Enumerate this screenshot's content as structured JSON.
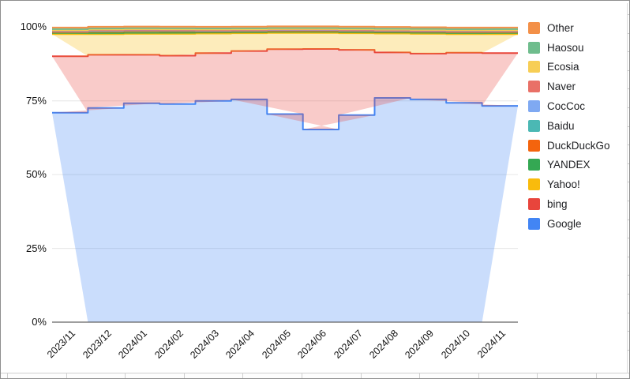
{
  "chart_data": {
    "type": "area",
    "stacking": "percent",
    "step": true,
    "title": "",
    "xlabel": "",
    "ylabel": "",
    "ylim": [
      0,
      100
    ],
    "grid": true,
    "legend_position": "right",
    "x": [
      "2023/11",
      "2023/12",
      "2024/01",
      "2024/02",
      "2024/03",
      "2024/04",
      "2024/05",
      "2024/06",
      "2024/07",
      "2024/08",
      "2024/09",
      "2024/10",
      "2024/11"
    ],
    "y_ticks": [
      "100%",
      "75%",
      "50%",
      "25%",
      "0%"
    ],
    "series": [
      {
        "name": "Google",
        "color": "#4285F4",
        "values": [
          71.0,
          72.6,
          74.2,
          73.9,
          75.0,
          75.5,
          70.5,
          65.3,
          70.2,
          76.0,
          75.5,
          74.3,
          73.3
        ]
      },
      {
        "name": "bing",
        "color": "#E8453C",
        "values": [
          19.1,
          18.0,
          16.4,
          16.4,
          16.2,
          16.4,
          22.0,
          27.3,
          22.1,
          15.4,
          15.5,
          17.0,
          17.9
        ]
      },
      {
        "name": "Yahoo!",
        "color": "#F9BB0C",
        "values": [
          7.5,
          7.0,
          7.1,
          7.4,
          6.6,
          6.0,
          5.5,
          5.4,
          5.6,
          6.4,
          6.7,
          6.3,
          6.4
        ]
      },
      {
        "name": "YANDEX",
        "color": "#34A853",
        "values": [
          0.4,
          0.4,
          0.4,
          0.4,
          0.4,
          0.4,
          0.4,
          0.4,
          0.4,
          0.4,
          0.4,
          0.4,
          0.4
        ]
      },
      {
        "name": "DuckDuckGo",
        "color": "#F4640D",
        "values": [
          0.3,
          0.55,
          0.55,
          0.5,
          0.35,
          0.3,
          0.3,
          0.3,
          0.3,
          0.3,
          0.3,
          0.3,
          0.3
        ]
      },
      {
        "name": "Baidu",
        "color": "#4BB8B4",
        "values": [
          0.25,
          0.25,
          0.25,
          0.25,
          0.25,
          0.25,
          0.25,
          0.25,
          0.25,
          0.25,
          0.25,
          0.25,
          0.25
        ]
      },
      {
        "name": "CocCoc",
        "color": "#7FA9F2",
        "values": [
          0.05,
          0.05,
          0.05,
          0.05,
          0.05,
          0.05,
          0.05,
          0.05,
          0.05,
          0.05,
          0.05,
          0.05,
          0.05
        ]
      },
      {
        "name": "Naver",
        "color": "#E97067",
        "values": [
          0.15,
          0.15,
          0.15,
          0.15,
          0.15,
          0.15,
          0.15,
          0.15,
          0.15,
          0.15,
          0.15,
          0.15,
          0.15
        ]
      },
      {
        "name": "Ecosia",
        "color": "#F7CE55",
        "values": [
          0.2,
          0.2,
          0.2,
          0.2,
          0.2,
          0.2,
          0.2,
          0.2,
          0.2,
          0.2,
          0.2,
          0.2,
          0.2
        ]
      },
      {
        "name": "Haosou",
        "color": "#6FBD8D",
        "values": [
          0.35,
          0.35,
          0.35,
          0.35,
          0.35,
          0.35,
          0.35,
          0.35,
          0.35,
          0.35,
          0.35,
          0.35,
          0.35
        ]
      },
      {
        "name": "Other",
        "color": "#F39048",
        "values": [
          0.55,
          0.55,
          0.55,
          0.55,
          0.55,
          0.55,
          0.55,
          0.55,
          0.55,
          0.55,
          0.55,
          0.55,
          0.55
        ]
      }
    ],
    "colors": {
      "gridline": "#e6e6e6",
      "axis_line": "#3c3c3c",
      "fill_opacity": 0.28
    }
  }
}
